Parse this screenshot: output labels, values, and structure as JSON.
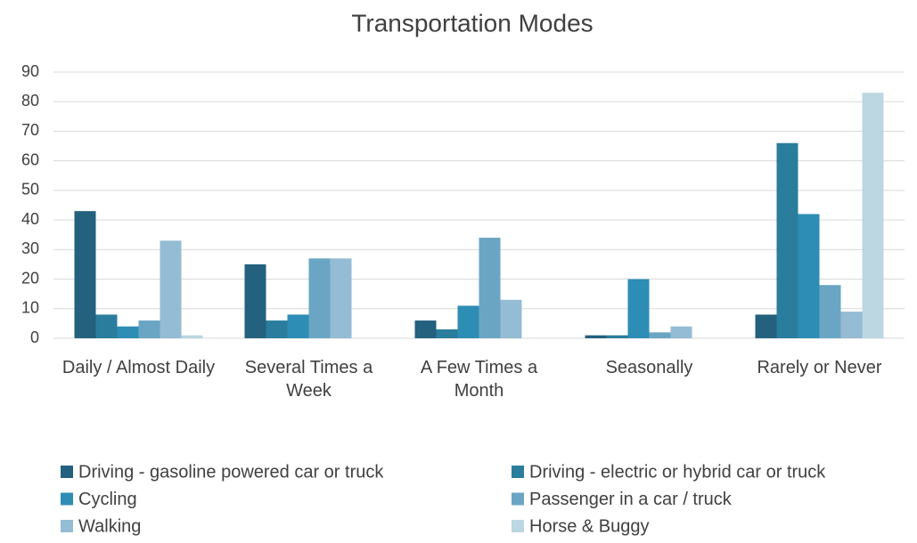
{
  "chart_data": {
    "type": "bar",
    "title": "Transportation Modes",
    "categories": [
      "Daily / Almost Daily",
      "Several Times a Week",
      "A Few Times a Month",
      "Seasonally",
      "Rarely or Never"
    ],
    "series": [
      {
        "name": "Driving - gasoline powered car or truck",
        "color": "#23617e",
        "values": [
          43,
          25,
          6,
          1,
          8
        ]
      },
      {
        "name": "Driving - electric or hybrid car or truck",
        "color": "#2a7d9c",
        "values": [
          8,
          6,
          3,
          1,
          66
        ]
      },
      {
        "name": "Cycling",
        "color": "#2e8db5",
        "values": [
          4,
          8,
          11,
          20,
          42
        ]
      },
      {
        "name": "Passenger in a car / truck",
        "color": "#6aa6c4",
        "values": [
          6,
          27,
          34,
          2,
          18
        ]
      },
      {
        "name": "Walking",
        "color": "#94bcd4",
        "values": [
          33,
          27,
          13,
          4,
          9
        ]
      },
      {
        "name": "Horse & Buggy",
        "color": "#bcd6e2",
        "values": [
          1,
          0,
          0,
          0,
          83
        ]
      }
    ],
    "ylim": [
      0,
      90
    ],
    "yticks": [
      0,
      10,
      20,
      30,
      40,
      50,
      60,
      70,
      80,
      90
    ],
    "grid": true,
    "legend": "bottom"
  }
}
